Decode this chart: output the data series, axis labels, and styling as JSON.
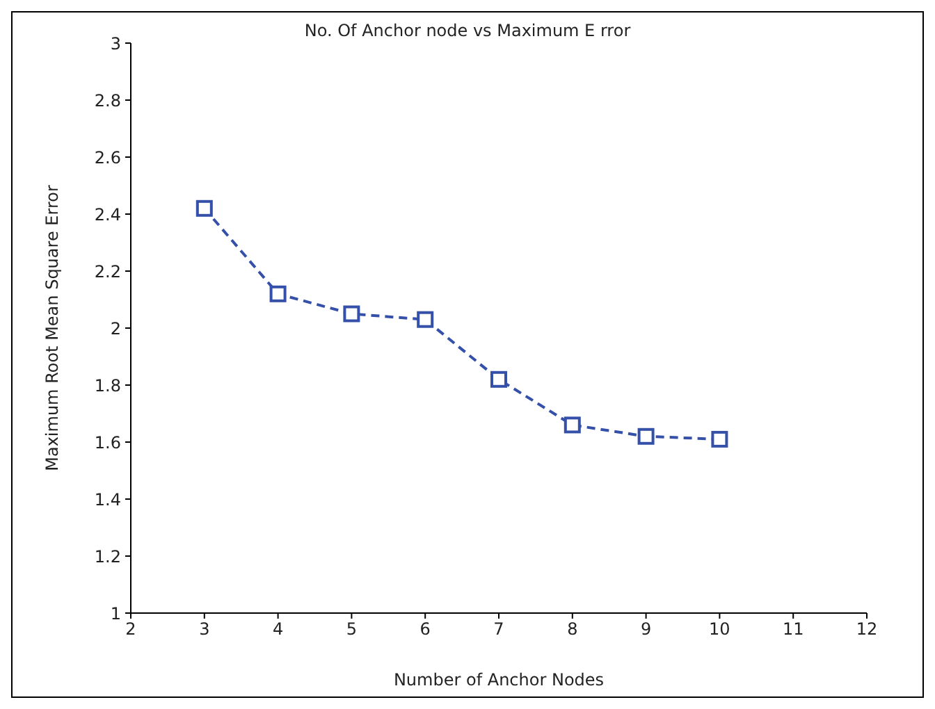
{
  "chart_data": {
    "type": "line",
    "title": "No. Of Anchor node vs Maximum E rror",
    "xlabel": "Number of Anchor Nodes",
    "ylabel": "Maximum Root Mean Square Error",
    "x": [
      3,
      4,
      5,
      6,
      7,
      8,
      9,
      10
    ],
    "series": [
      {
        "color": "#3550a8",
        "values": [
          2.42,
          2.12,
          2.05,
          2.03,
          1.82,
          1.66,
          1.62,
          1.61
        ]
      }
    ],
    "xlim": [
      2,
      12
    ],
    "xticks": [
      2,
      3,
      4,
      5,
      6,
      7,
      8,
      9,
      10,
      11,
      12
    ],
    "ylim": [
      1,
      3
    ],
    "yticks": [
      1,
      1.2,
      1.4,
      1.6,
      1.8,
      2,
      2.2,
      2.4,
      2.6,
      2.8,
      3
    ],
    "grid": false,
    "legend": false,
    "marker": "square",
    "line_style": "dashed"
  }
}
